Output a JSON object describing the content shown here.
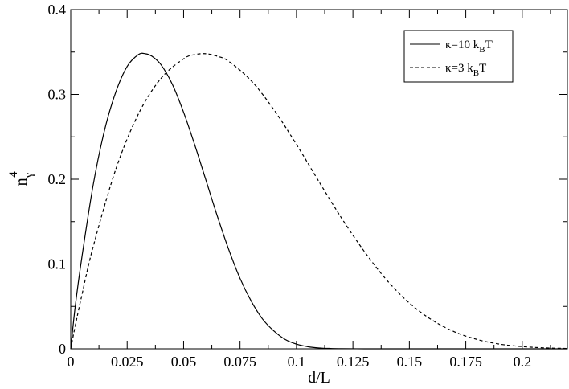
{
  "chart_data": {
    "type": "line",
    "xlabel": "d/L",
    "ylabel": {
      "main": "n",
      "sub": "γ",
      "sup": "4"
    },
    "xlim": [
      0,
      0.22
    ],
    "ylim": [
      0,
      0.4
    ],
    "x_ticks": [
      0,
      0.025,
      0.05,
      0.075,
      0.1,
      0.125,
      0.15,
      0.175,
      0.2
    ],
    "x_tick_labels": [
      "0",
      "0.025",
      "0.05",
      "0.075",
      "0.1",
      "0.125",
      "0.15",
      "0.175",
      "0.2"
    ],
    "y_ticks": [
      0,
      0.1,
      0.2,
      0.3,
      0.4
    ],
    "y_tick_labels": [
      "0",
      "0.1",
      "0.2",
      "0.3",
      "0.4"
    ],
    "grid": false,
    "legend_position": "top-right",
    "series": [
      {
        "name": {
          "pre": "κ=10 k",
          "sub": "B",
          "post": "T"
        },
        "style": "solid",
        "color": "#000000",
        "x": [
          0,
          0.002,
          0.005,
          0.01,
          0.015,
          0.02,
          0.025,
          0.03,
          0.033,
          0.036,
          0.04,
          0.045,
          0.05,
          0.055,
          0.06,
          0.065,
          0.07,
          0.075,
          0.08,
          0.085,
          0.09,
          0.095,
          0.1,
          0.105,
          0.11,
          0.115,
          0.12,
          0.13,
          0.14,
          0.16,
          0.2,
          0.22
        ],
        "y": [
          0,
          0.05,
          0.109,
          0.194,
          0.258,
          0.303,
          0.333,
          0.347,
          0.348,
          0.345,
          0.335,
          0.312,
          0.279,
          0.24,
          0.198,
          0.156,
          0.117,
          0.083,
          0.056,
          0.035,
          0.021,
          0.011,
          0.0055,
          0.0025,
          0.001,
          0.0004,
          0.00015,
          1e-05,
          0,
          0,
          0,
          0
        ]
      },
      {
        "name": {
          "pre": "κ=3 k",
          "sub": "B",
          "post": "T"
        },
        "style": "dashed",
        "color": "#000000",
        "x": [
          0,
          0.002,
          0.005,
          0.01,
          0.02,
          0.03,
          0.04,
          0.05,
          0.055,
          0.06,
          0.065,
          0.07,
          0.08,
          0.09,
          0.1,
          0.11,
          0.12,
          0.13,
          0.14,
          0.15,
          0.16,
          0.17,
          0.18,
          0.19,
          0.2,
          0.21,
          0.22
        ],
        "y": [
          0,
          0.027,
          0.064,
          0.121,
          0.212,
          0.277,
          0.319,
          0.342,
          0.347,
          0.348,
          0.345,
          0.339,
          0.316,
          0.282,
          0.241,
          0.197,
          0.154,
          0.115,
          0.081,
          0.054,
          0.034,
          0.02,
          0.011,
          0.0055,
          0.0026,
          0.0011,
          0.0004
        ]
      }
    ]
  }
}
